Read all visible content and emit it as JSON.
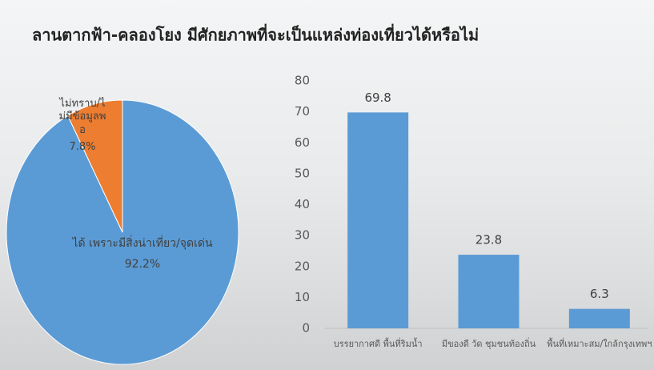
{
  "title": "ลานตากฟ้า-คลองโยง มีศักยภาพที่จะเป็นแหล่งท่องเที่ยวได้หรือไม่",
  "chart_data": [
    {
      "type": "pie",
      "categories": [
        "ได้ เพราะมีสิ่งน่าเที่ยว/จุดเด่น",
        "ไม่ทราบ/ไม่มีข้อมูลพอ"
      ],
      "values": [
        92.2,
        7.8
      ],
      "value_labels": [
        "92.2%",
        "7.8%"
      ],
      "colors": [
        "#5b9bd5",
        "#ed7d31"
      ]
    },
    {
      "type": "bar",
      "categories": [
        "บรรยากาศดี พื้นที่ริมน้ำ",
        "มีของดี วัด ชุมชนท้องถิ่น",
        "พื้นที่เหมาะสม/ใกล้กรุงเทพฯ"
      ],
      "values": [
        69.8,
        23.8,
        6.3
      ],
      "color": "#5b9bd5",
      "ylim": [
        0,
        80
      ],
      "yticks": [
        0,
        10,
        20,
        30,
        40,
        50,
        60,
        70,
        80
      ],
      "grid": false
    }
  ]
}
